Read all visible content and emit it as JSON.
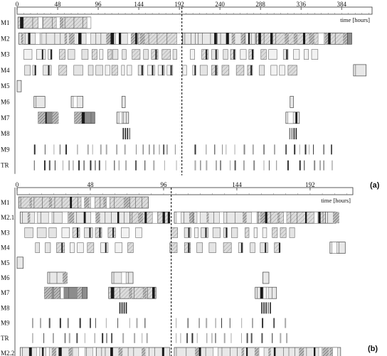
{
  "chart_data": [
    {
      "type": "gantt",
      "panel_label": "(a)",
      "time_unit": "time [hours]",
      "xlim": [
        0,
        420
      ],
      "ticks": [
        0,
        48,
        96,
        144,
        192,
        240,
        288,
        336,
        384
      ],
      "divider": 195,
      "machines": [
        "M1",
        "M2",
        "M3",
        "M4",
        "M5",
        "M6",
        "M7",
        "M8",
        "M9",
        "TR"
      ],
      "tasks": [
        {
          "m": 0,
          "s": 1,
          "e": 87,
          "kind": "hatch"
        },
        {
          "m": 1,
          "s": 2,
          "e": 142,
          "kind": "light"
        },
        {
          "m": 1,
          "s": 143,
          "e": 193,
          "kind": "hatch"
        },
        {
          "m": 1,
          "s": 196,
          "e": 282,
          "kind": "light"
        },
        {
          "m": 1,
          "s": 283,
          "e": 391,
          "kind": "hatch"
        },
        {
          "m": 1,
          "s": 391,
          "e": 396,
          "kind": "dark"
        },
        {
          "m": 2,
          "s": 8,
          "e": 112,
          "kind": "sparse"
        },
        {
          "m": 2,
          "s": 113,
          "e": 190,
          "kind": "sparse"
        },
        {
          "m": 2,
          "s": 205,
          "e": 310,
          "kind": "sparse"
        },
        {
          "m": 2,
          "s": 315,
          "e": 360,
          "kind": "sparse"
        },
        {
          "m": 3,
          "s": 9,
          "e": 110,
          "kind": "sparse"
        },
        {
          "m": 3,
          "s": 112,
          "e": 190,
          "kind": "sparse"
        },
        {
          "m": 3,
          "s": 196,
          "e": 332,
          "kind": "sparse"
        },
        {
          "m": 3,
          "s": 398,
          "e": 413,
          "kind": "light"
        },
        {
          "m": 4,
          "s": 0,
          "e": 5,
          "kind": "light"
        },
        {
          "m": 5,
          "s": 20,
          "e": 33,
          "kind": "light"
        },
        {
          "m": 5,
          "s": 64,
          "e": 78,
          "kind": "light"
        },
        {
          "m": 5,
          "s": 124,
          "e": 128,
          "kind": "light"
        },
        {
          "m": 5,
          "s": 323,
          "e": 327,
          "kind": "light"
        },
        {
          "m": 6,
          "s": 25,
          "e": 48,
          "kind": "dark"
        },
        {
          "m": 6,
          "s": 68,
          "e": 92,
          "kind": "dark"
        },
        {
          "m": 6,
          "s": 118,
          "e": 132,
          "kind": "light"
        },
        {
          "m": 6,
          "s": 318,
          "e": 334,
          "kind": "light"
        },
        {
          "m": 7,
          "s": 125,
          "e": 134,
          "kind": "bars"
        },
        {
          "m": 7,
          "s": 322,
          "e": 332,
          "kind": "bars"
        },
        {
          "m": 8,
          "s": 20,
          "e": 190,
          "kind": "lines"
        },
        {
          "m": 8,
          "s": 210,
          "e": 375,
          "kind": "lines"
        },
        {
          "m": 9,
          "s": 20,
          "e": 190,
          "kind": "lines"
        },
        {
          "m": 9,
          "s": 210,
          "e": 375,
          "kind": "lines"
        }
      ]
    },
    {
      "type": "gantt",
      "panel_label": "(b)",
      "time_unit": "time [hours]",
      "xlim": [
        0,
        220
      ],
      "ticks": [
        0,
        48,
        96,
        144,
        192
      ],
      "divider": 101,
      "machines": [
        "M1",
        "M2.1",
        "M3",
        "M4",
        "M5",
        "M6",
        "M7",
        "M8",
        "M9",
        "TR",
        "M2.2"
      ],
      "tasks": [
        {
          "m": 0,
          "s": 1,
          "e": 86,
          "kind": "hatch"
        },
        {
          "m": 1,
          "s": 2,
          "e": 74,
          "kind": "light"
        },
        {
          "m": 1,
          "s": 74,
          "e": 100,
          "kind": "hatch"
        },
        {
          "m": 1,
          "s": 103,
          "e": 158,
          "kind": "light"
        },
        {
          "m": 1,
          "s": 158,
          "e": 202,
          "kind": "hatch"
        },
        {
          "m": 1,
          "s": 202,
          "e": 209,
          "kind": "light"
        },
        {
          "m": 2,
          "s": 5,
          "e": 86,
          "kind": "sparse"
        },
        {
          "m": 2,
          "s": 101,
          "e": 185,
          "kind": "sparse"
        },
        {
          "m": 3,
          "s": 12,
          "e": 79,
          "kind": "sparse"
        },
        {
          "m": 3,
          "s": 100,
          "e": 172,
          "kind": "sparse"
        },
        {
          "m": 3,
          "s": 205,
          "e": 215,
          "kind": "light"
        },
        {
          "m": 4,
          "s": 0,
          "e": 4,
          "kind": "light"
        },
        {
          "m": 5,
          "s": 20,
          "e": 32,
          "kind": "light"
        },
        {
          "m": 5,
          "s": 62,
          "e": 76,
          "kind": "light"
        },
        {
          "m": 5,
          "s": 161,
          "e": 165,
          "kind": "light"
        },
        {
          "m": 6,
          "s": 18,
          "e": 46,
          "kind": "dark"
        },
        {
          "m": 6,
          "s": 60,
          "e": 91,
          "kind": "hatch"
        },
        {
          "m": 6,
          "s": 156,
          "e": 170,
          "kind": "light"
        },
        {
          "m": 7,
          "s": 67,
          "e": 72,
          "kind": "bars"
        },
        {
          "m": 7,
          "s": 160,
          "e": 166,
          "kind": "bars"
        },
        {
          "m": 8,
          "s": 10,
          "e": 85,
          "kind": "lines"
        },
        {
          "m": 8,
          "s": 104,
          "e": 178,
          "kind": "lines"
        },
        {
          "m": 9,
          "s": 10,
          "e": 85,
          "kind": "lines"
        },
        {
          "m": 9,
          "s": 104,
          "e": 178,
          "kind": "lines"
        },
        {
          "m": 10,
          "s": 2,
          "e": 100,
          "kind": "light"
        },
        {
          "m": 10,
          "s": 103,
          "e": 212,
          "kind": "light"
        }
      ]
    }
  ]
}
